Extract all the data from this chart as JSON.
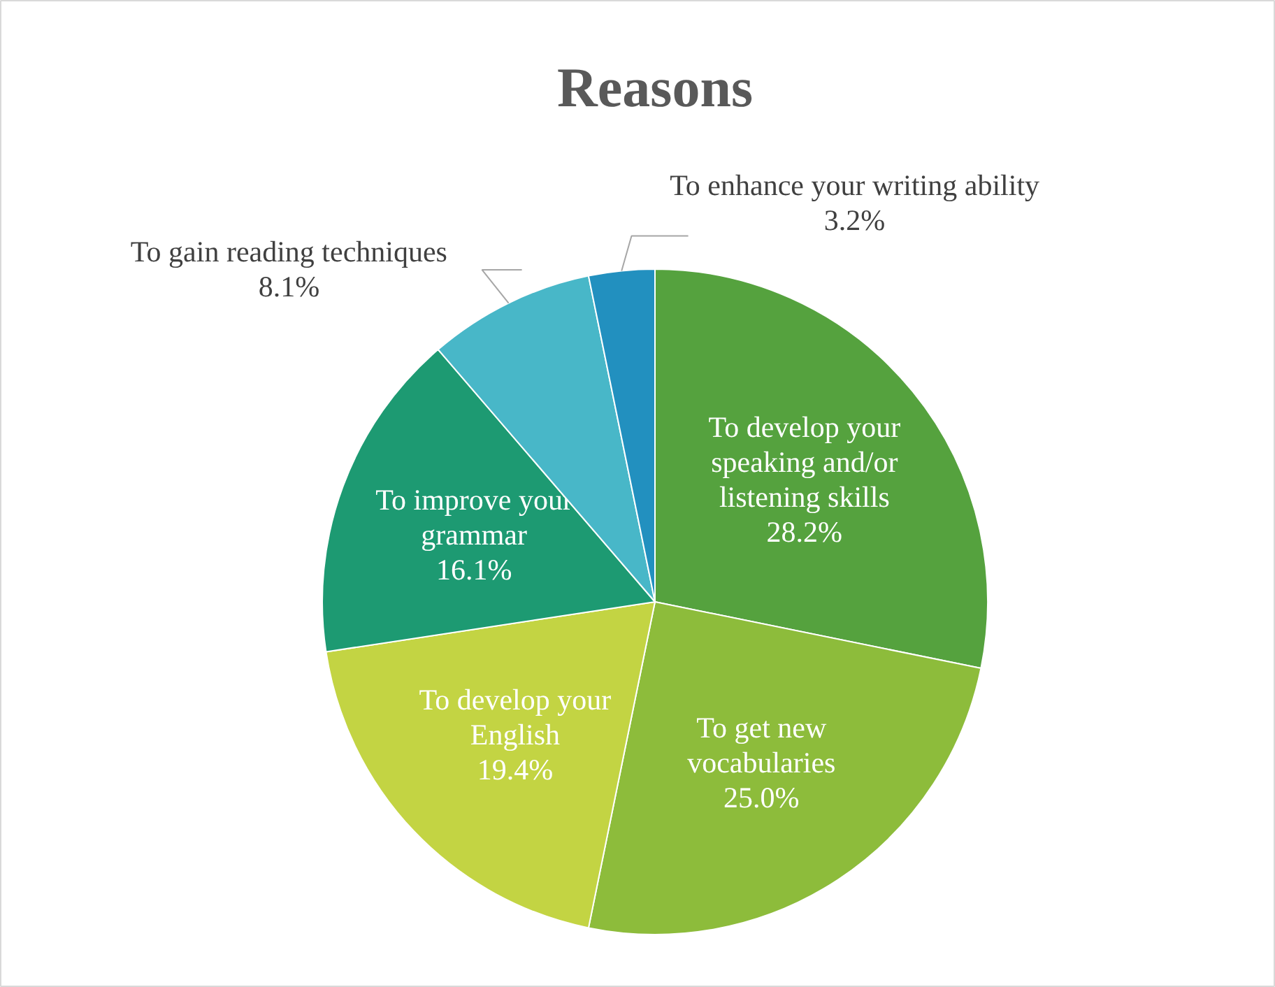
{
  "chart_data": {
    "type": "pie",
    "title": "Reasons",
    "categories": [
      "To develop your speaking and/or listening skills",
      "To get new vocabularies",
      "To develop your English",
      "To improve your grammar",
      "To gain reading techniques",
      "To enhance your writing ability"
    ],
    "values": [
      28.2,
      25.0,
      19.4,
      16.1,
      8.1,
      3.2
    ],
    "colors": [
      "#55a23e",
      "#8dbc3b",
      "#c3d443",
      "#1d9a72",
      "#48b7c8",
      "#2290bf"
    ],
    "value_labels": [
      "28.2%",
      "25.0%",
      "19.4%",
      "16.1%",
      "8.1%",
      "3.2%"
    ]
  }
}
